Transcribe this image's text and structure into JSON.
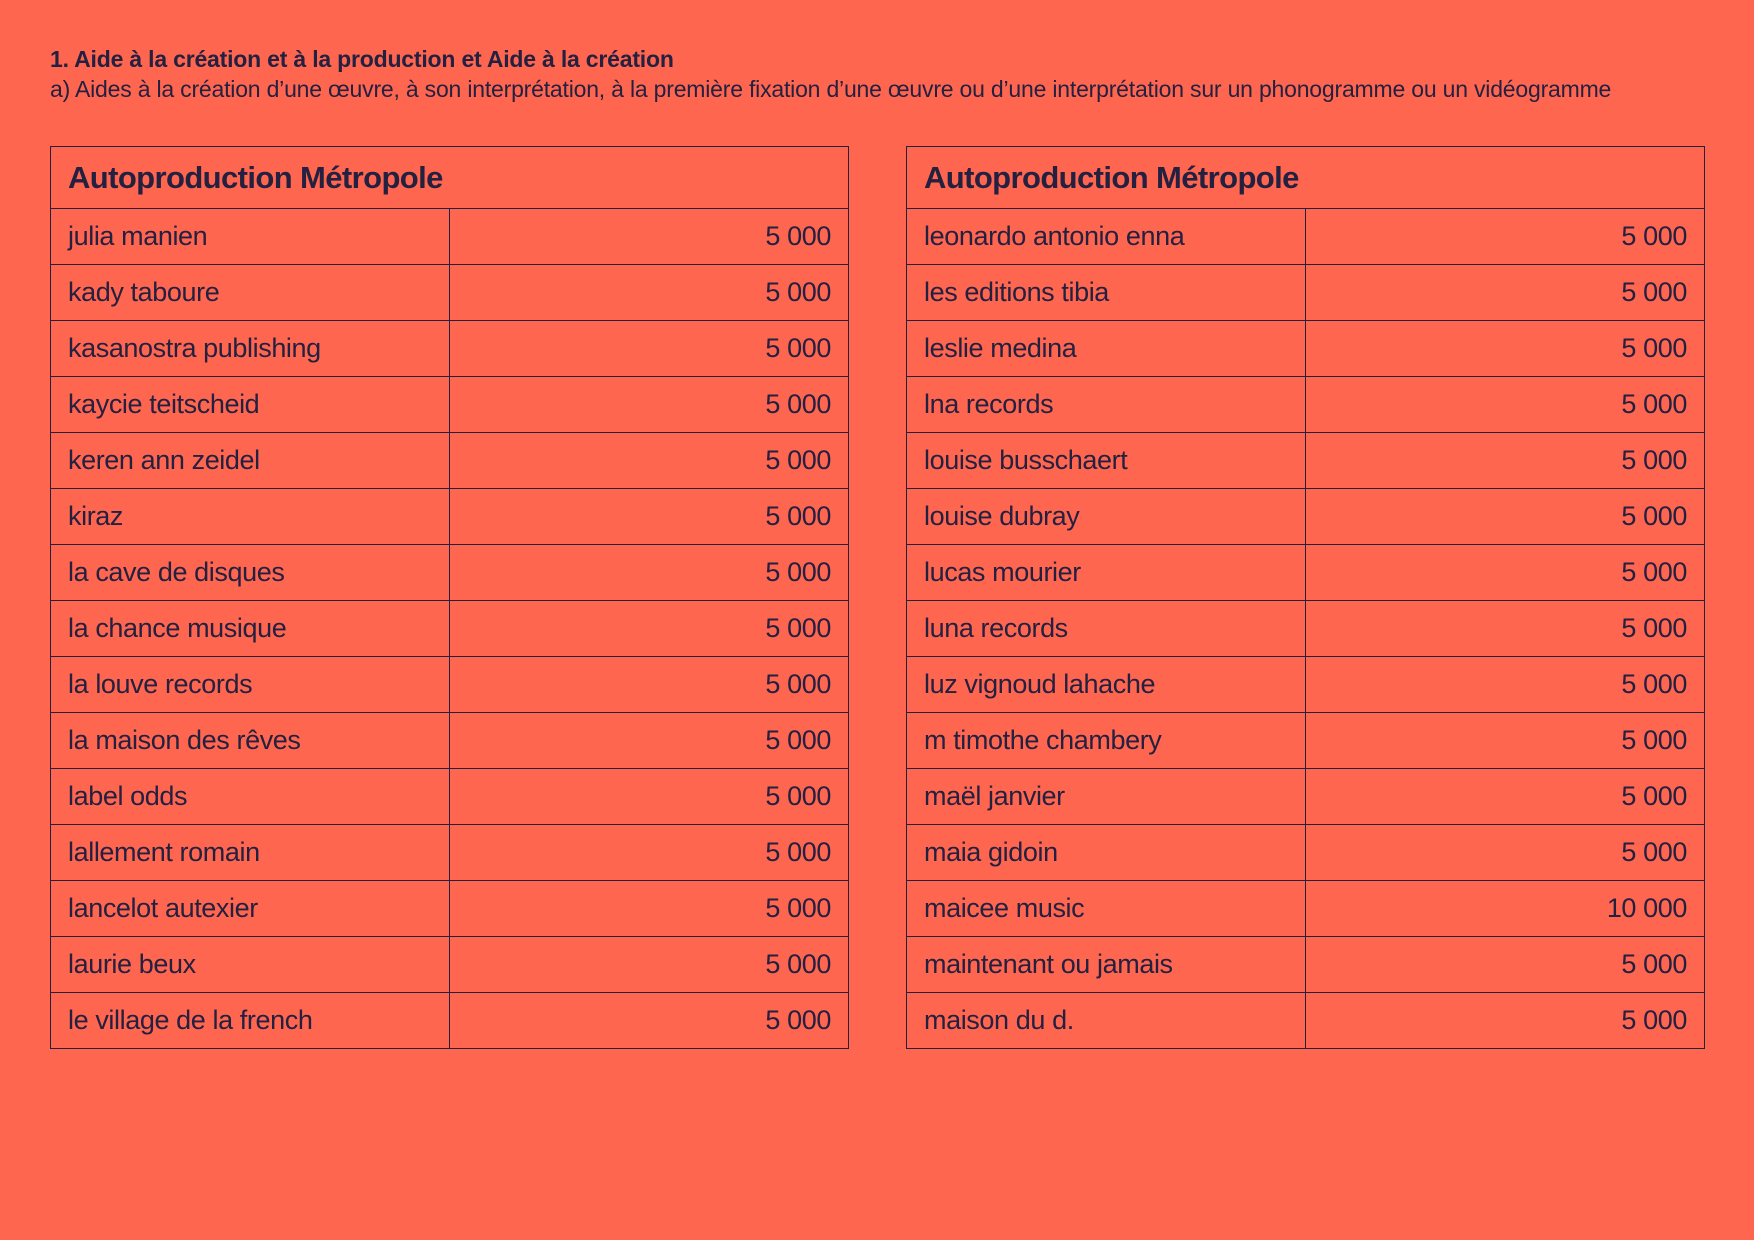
{
  "heading": {
    "title": "1. Aide à la création et à la production et Aide à la création",
    "subtitle": "a) Aides à la création d’une œuvre, à son interprétation, à la première fixation d’une œuvre ou d’une interprétation sur un phonogramme ou un vidéogramme"
  },
  "tables": [
    {
      "header": "Autoproduction Métropole",
      "rows": [
        {
          "name": "julia manien",
          "amount": "5 000"
        },
        {
          "name": "kady taboure",
          "amount": "5 000"
        },
        {
          "name": "kasanostra publishing",
          "amount": "5 000"
        },
        {
          "name": "kaycie teitscheid",
          "amount": "5 000"
        },
        {
          "name": "keren ann zeidel",
          "amount": "5 000"
        },
        {
          "name": "kiraz",
          "amount": "5 000"
        },
        {
          "name": "la cave de disques",
          "amount": "5 000"
        },
        {
          "name": "la chance musique",
          "amount": "5 000"
        },
        {
          "name": "la louve records",
          "amount": "5 000"
        },
        {
          "name": "la maison des rêves",
          "amount": "5 000"
        },
        {
          "name": "label odds",
          "amount": "5 000"
        },
        {
          "name": "lallement romain",
          "amount": "5 000"
        },
        {
          "name": "lancelot autexier",
          "amount": "5 000"
        },
        {
          "name": "laurie beux",
          "amount": "5 000"
        },
        {
          "name": "le village de la french",
          "amount": "5 000"
        }
      ]
    },
    {
      "header": "Autoproduction Métropole",
      "rows": [
        {
          "name": "leonardo antonio enna",
          "amount": "5 000"
        },
        {
          "name": "les editions tibia",
          "amount": "5 000"
        },
        {
          "name": "leslie medina",
          "amount": "5 000"
        },
        {
          "name": "lna records",
          "amount": "5 000"
        },
        {
          "name": "louise busschaert",
          "amount": "5 000"
        },
        {
          "name": "louise dubray",
          "amount": "5 000"
        },
        {
          "name": "lucas mourier",
          "amount": "5 000"
        },
        {
          "name": "luna records",
          "amount": "5 000"
        },
        {
          "name": "luz vignoud lahache",
          "amount": "5 000"
        },
        {
          "name": "m timothe chambery",
          "amount": "5 000"
        },
        {
          "name": "maël janvier",
          "amount": "5 000"
        },
        {
          "name": "maia gidoin",
          "amount": "5 000"
        },
        {
          "name": "maicee music",
          "amount": "10 000"
        },
        {
          "name": "maintenant ou jamais",
          "amount": "5 000"
        },
        {
          "name": "maison du d.",
          "amount": "5 000"
        }
      ]
    }
  ],
  "colors": {
    "background": "#ff6650",
    "ink": "#232040"
  }
}
